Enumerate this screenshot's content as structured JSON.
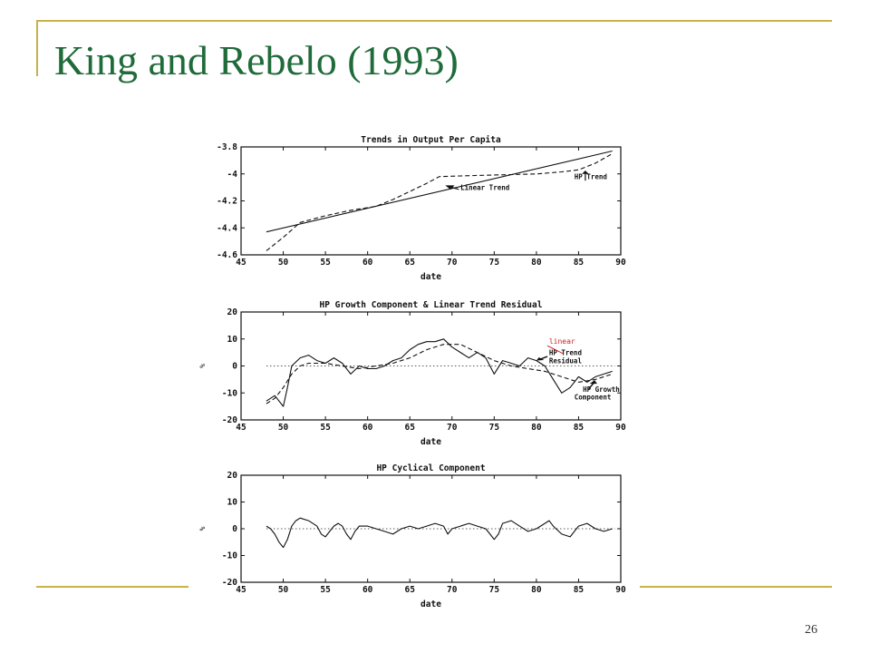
{
  "slide": {
    "title": "King and Rebelo (1993)",
    "page_number": "26"
  },
  "colors": {
    "title": "#1f6b3a",
    "rule": "#c8b24a",
    "annotation": "#d02020"
  },
  "chart_data": [
    {
      "type": "line",
      "title": "Trends in Output Per Capita",
      "xlabel": "date",
      "ylabel": "",
      "xlim": [
        45,
        90
      ],
      "ylim": [
        -4.6,
        -3.8
      ],
      "xticks": [
        45,
        50,
        55,
        60,
        65,
        70,
        75,
        80,
        85,
        90
      ],
      "yticks": [
        -3.8,
        -4,
        -4.2,
        -4.4,
        -4.6
      ],
      "ytick_labels": [
        "-3.8",
        "-4",
        "-4.2",
        "-4.4",
        "-4.6"
      ],
      "grid": false,
      "series": [
        {
          "style": "solid",
          "x": [
            48,
            89
          ],
          "y": [
            -4.43,
            -3.83
          ]
        },
        {
          "style": "dashed",
          "x": [
            48,
            50,
            52,
            55,
            58,
            61,
            63,
            65,
            67,
            68.5,
            71,
            74,
            77,
            80,
            83,
            85,
            87,
            89
          ],
          "y": [
            -4.57,
            -4.47,
            -4.36,
            -4.31,
            -4.27,
            -4.24,
            -4.19,
            -4.13,
            -4.07,
            -4.02,
            -4.015,
            -4.01,
            -4.005,
            -4.0,
            -3.985,
            -3.97,
            -3.92,
            -3.85
          ]
        }
      ],
      "annotations": [
        {
          "text": "Linear Trend",
          "x": 71,
          "y": -4.12
        },
        {
          "text": "HP Trend",
          "x": 84.5,
          "y": -4.04
        }
      ]
    },
    {
      "type": "line",
      "title": "HP Growth Component & Linear Trend Residual",
      "xlabel": "date",
      "ylabel": "%",
      "xlim": [
        45,
        90
      ],
      "ylim": [
        -20,
        20
      ],
      "xticks": [
        45,
        50,
        55,
        60,
        65,
        70,
        75,
        80,
        85,
        90
      ],
      "yticks": [
        20,
        10,
        0,
        -10,
        -20
      ],
      "zero_line": "dotted",
      "series": [
        {
          "style": "solid",
          "x": [
            48,
            49,
            50,
            50.5,
            51,
            52,
            53,
            54,
            55,
            56,
            57,
            58,
            59,
            60,
            61,
            62,
            63,
            64,
            65,
            66,
            67,
            68,
            69,
            70,
            71,
            72,
            73,
            74,
            75,
            76,
            77,
            78,
            79,
            80,
            81,
            82,
            83,
            84,
            85,
            86,
            87,
            88,
            89
          ],
          "y": [
            -13,
            -11,
            -15,
            -8,
            0,
            3,
            4,
            2,
            1,
            3,
            1,
            -3,
            0,
            -1,
            -1,
            0,
            2,
            3,
            6,
            8,
            9,
            9,
            10,
            7,
            5,
            3,
            5,
            3,
            -3,
            2,
            1,
            0,
            3,
            2,
            0,
            -5,
            -10,
            -8,
            -4,
            -6,
            -4,
            -3,
            -2
          ]
        },
        {
          "style": "dashed",
          "x": [
            48,
            49,
            50,
            51,
            52,
            53,
            55,
            57,
            59,
            61,
            63,
            65,
            67,
            69,
            71,
            73,
            75,
            77,
            79,
            81,
            83,
            85,
            87,
            89
          ],
          "y": [
            -14,
            -12,
            -8,
            -3,
            0,
            1,
            1,
            0,
            -1,
            0,
            1,
            3,
            6,
            8,
            8,
            5,
            2,
            0,
            -1,
            -2,
            -4,
            -6,
            -5,
            -3
          ]
        }
      ],
      "annotations": [
        {
          "text": "linear",
          "x": 81.5,
          "y": 8.2,
          "color": "#d02020"
        },
        {
          "text": "HP Trend",
          "x": 81.5,
          "y": 4
        },
        {
          "text": "Residual",
          "x": 81.5,
          "y": 1
        },
        {
          "text": "HP Growth",
          "x": 85.5,
          "y": -9.5
        },
        {
          "text": "Component",
          "x": 84.5,
          "y": -12.5
        }
      ]
    },
    {
      "type": "line",
      "title": "HP Cyclical Component",
      "xlabel": "date",
      "ylabel": "%",
      "xlim": [
        45,
        90
      ],
      "ylim": [
        -20,
        20
      ],
      "xticks": [
        45,
        50,
        55,
        60,
        65,
        70,
        75,
        80,
        85,
        90
      ],
      "yticks": [
        20,
        10,
        0,
        -10,
        -20
      ],
      "zero_line": "dotted",
      "series": [
        {
          "style": "solid",
          "x": [
            48,
            48.5,
            49,
            49.5,
            50,
            50.5,
            51,
            51.5,
            52,
            53,
            54,
            54.5,
            55,
            55.5,
            56,
            56.5,
            57,
            57.5,
            58,
            58.5,
            59,
            60,
            61,
            62,
            63,
            64,
            65,
            66,
            67,
            68,
            69,
            69.5,
            70,
            71,
            72,
            73,
            74,
            74.5,
            75,
            75.5,
            76,
            77,
            78,
            79,
            80,
            81,
            81.5,
            82,
            83,
            84,
            85,
            86,
            87,
            88,
            89
          ],
          "y": [
            1,
            0,
            -2,
            -5,
            -7,
            -4,
            1,
            3,
            4,
            3,
            1,
            -2,
            -3,
            -1,
            1,
            2,
            1,
            -2,
            -4,
            -1,
            1,
            1,
            0,
            -1,
            -2,
            0,
            1,
            0,
            1,
            2,
            1,
            -2,
            0,
            1,
            2,
            1,
            0,
            -2,
            -4,
            -2,
            2,
            3,
            1,
            -1,
            0,
            2,
            3,
            1,
            -2,
            -3,
            1,
            2,
            0,
            -1,
            0
          ]
        }
      ],
      "annotations": []
    }
  ]
}
